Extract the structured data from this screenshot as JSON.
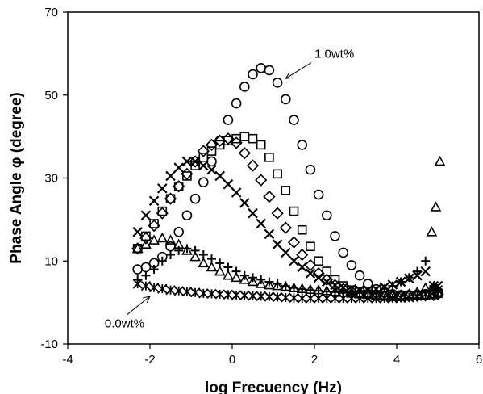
{
  "chart_data": {
    "type": "scatter",
    "title": "",
    "xlabel": "log Frecuency (Hz)",
    "ylabel": "Phase Angle φ (degree)",
    "xlim": [
      -4,
      6
    ],
    "ylim": [
      -10,
      70
    ],
    "xticks": [
      "-4",
      "-2",
      "0",
      "2",
      "4",
      "6"
    ],
    "yticks": [
      "-10",
      "10",
      "30",
      "50",
      "70"
    ],
    "grid": false,
    "legend": "none",
    "annotations": [
      {
        "text": "1.0wt%",
        "x": 2.0,
        "y": 59,
        "arrow_to": [
          1.3,
          54
        ]
      },
      {
        "text": "0.0wt%",
        "x": -3.1,
        "y": -6,
        "arrow_to": [
          -2.0,
          1.5
        ]
      }
    ],
    "series": [
      {
        "marker": "circle",
        "x": [
          -2.3,
          -2.1,
          -1.9,
          -1.7,
          -1.5,
          -1.3,
          -1.1,
          -0.9,
          -0.7,
          -0.5,
          -0.3,
          -0.1,
          0.1,
          0.3,
          0.5,
          0.7,
          0.9,
          1.1,
          1.3,
          1.5,
          1.7,
          1.9,
          2.1,
          2.3,
          2.5,
          2.7,
          2.9,
          3.1,
          3.3,
          3.5,
          3.7,
          3.9,
          4.1,
          4.3,
          4.5,
          4.7,
          4.9,
          5.0
        ],
        "y": [
          8,
          8.5,
          9.5,
          11,
          13.5,
          17,
          21,
          25,
          29,
          34,
          39,
          44,
          48,
          52,
          55,
          56.5,
          56,
          53,
          49,
          44,
          38,
          32,
          26,
          21,
          16,
          12,
          9,
          6.5,
          4.5,
          3.2,
          2.5,
          2,
          1.8,
          1.8,
          1.9,
          2,
          2.2,
          2.5
        ]
      },
      {
        "marker": "square",
        "x": [
          -2.3,
          -2.1,
          -1.9,
          -1.7,
          -1.5,
          -1.3,
          -1.1,
          -0.9,
          -0.7,
          -0.5,
          -0.3,
          -0.1,
          0.1,
          0.3,
          0.5,
          0.7,
          0.9,
          1.1,
          1.3,
          1.5,
          1.7,
          1.9,
          2.1,
          2.3,
          2.5,
          2.7,
          2.9,
          3.1,
          3.3,
          3.5,
          3.7,
          3.9,
          4.1,
          4.3,
          4.5,
          4.7,
          4.9,
          5.0
        ],
        "y": [
          13,
          16,
          19,
          22,
          25,
          28,
          30.5,
          33,
          35,
          36.5,
          38,
          39,
          39.5,
          40,
          39.5,
          38,
          35,
          31,
          27,
          22,
          17.5,
          13.5,
          10,
          7.5,
          5.5,
          4,
          3,
          2.5,
          2,
          1.8,
          1.6,
          1.5,
          1.5,
          1.6,
          1.7,
          1.8,
          2,
          2.2
        ]
      },
      {
        "marker": "diamond",
        "x": [
          -2.3,
          -2.1,
          -1.9,
          -1.7,
          -1.5,
          -1.3,
          -1.1,
          -0.9,
          -0.7,
          -0.5,
          -0.3,
          -0.1,
          0.1,
          0.3,
          0.5,
          0.7,
          0.9,
          1.1,
          1.3,
          1.5,
          1.7,
          1.9,
          2.1,
          2.3,
          2.5,
          2.7,
          2.9,
          3.1,
          3.3,
          3.5,
          3.7,
          3.9,
          4.1,
          4.3,
          4.5,
          4.7,
          4.9,
          5.0
        ],
        "y": [
          13,
          15.5,
          18.5,
          21.5,
          25,
          28,
          31,
          34,
          36.5,
          38,
          39,
          39.5,
          38.5,
          36,
          33,
          29.5,
          25.5,
          21.5,
          18,
          14.5,
          11.5,
          9,
          7,
          5.5,
          4.2,
          3.2,
          2.6,
          2.2,
          1.9,
          1.7,
          1.6,
          1.5,
          1.5,
          1.5,
          1.6,
          1.7,
          1.8,
          2
        ]
      },
      {
        "marker": "x",
        "x": [
          -2.3,
          -2.1,
          -1.9,
          -1.7,
          -1.5,
          -1.3,
          -1.1,
          -0.9,
          -0.7,
          -0.5,
          -0.3,
          -0.1,
          0.1,
          0.3,
          0.5,
          0.7,
          0.9,
          1.1,
          1.3,
          1.5,
          1.7,
          1.9,
          2.1,
          2.3,
          2.5,
          2.7,
          2.9,
          3.1,
          3.3,
          3.5,
          3.7,
          3.9,
          4.1,
          4.3,
          4.5,
          4.7,
          4.9,
          5.0
        ],
        "y": [
          17,
          21,
          24.5,
          27.5,
          30.5,
          32.5,
          34,
          34,
          33,
          32,
          30.5,
          28.5,
          26.5,
          24,
          21.5,
          19,
          16.5,
          14,
          12,
          10,
          8.5,
          7,
          6,
          5,
          4.2,
          3.6,
          3.2,
          3,
          3,
          3.2,
          3.7,
          4.3,
          5,
          5.8,
          6.5,
          7.5,
          4,
          4
        ]
      },
      {
        "marker": "triangle",
        "x": [
          -2.3,
          -2.1,
          -1.9,
          -1.7,
          -1.5,
          -1.3,
          -1.1,
          -0.9,
          -0.7,
          -0.5,
          -0.3,
          -0.1,
          0.1,
          0.3,
          0.5,
          0.7,
          0.9,
          1.1,
          1.3,
          1.5,
          1.7,
          1.9,
          2.1,
          2.3,
          2.5,
          2.7,
          2.9,
          3.1,
          3.3,
          3.5,
          3.7,
          3.9,
          4.1,
          4.3,
          4.5,
          4.7,
          4.85,
          4.95,
          5.05
        ],
        "y": [
          13,
          14,
          15,
          15.5,
          15,
          14,
          12.5,
          11,
          9.5,
          8.5,
          7.5,
          6.5,
          6,
          5.5,
          5,
          4.5,
          4.2,
          4,
          3.8,
          3.5,
          3.3,
          3.1,
          3,
          2.8,
          2.6,
          2.4,
          2.2,
          2,
          1.9,
          1.8,
          1.7,
          1.7,
          1.8,
          2,
          2.5,
          3.5,
          17,
          23,
          34
        ]
      },
      {
        "marker": "plus",
        "x": [
          -2.3,
          -2.1,
          -1.9,
          -1.7,
          -1.5,
          -1.3,
          -1.1,
          -0.9,
          -0.7,
          -0.5,
          -0.3,
          -0.1,
          0.1,
          0.3,
          0.5,
          0.7,
          0.9,
          1.1,
          1.3,
          1.5,
          1.7,
          1.9,
          2.1,
          2.3,
          2.5,
          2.7,
          2.9,
          3.1,
          3.3,
          3.5,
          3.7,
          3.9,
          4.1,
          4.3,
          4.5,
          4.7,
          4.9,
          5.0
        ],
        "y": [
          5.5,
          6.5,
          8,
          10,
          11.5,
          12.5,
          13,
          12.5,
          11.5,
          10.5,
          9.5,
          8.5,
          7.5,
          6.5,
          6,
          5.5,
          5,
          4.5,
          4,
          3.5,
          3.2,
          3,
          2.8,
          2.6,
          2.5,
          2.4,
          2.3,
          2.3,
          2.5,
          2.8,
          3.3,
          4,
          5,
          6,
          7.5,
          10,
          4,
          3
        ]
      },
      {
        "marker": "star",
        "x": [
          -2.3,
          -2.1,
          -1.9,
          -1.7,
          -1.5,
          -1.3,
          -1.1,
          -0.9,
          -0.7,
          -0.5,
          -0.3,
          -0.1,
          0.1,
          0.3,
          0.5,
          0.7,
          0.9,
          1.1,
          1.3,
          1.5,
          1.7,
          1.9,
          2.1,
          2.3,
          2.5,
          2.7,
          2.9,
          3.1,
          3.3,
          3.5,
          3.7,
          3.9,
          4.1,
          4.3,
          4.5,
          4.7,
          4.9,
          5.0
        ],
        "y": [
          4.5,
          4,
          3.6,
          3.3,
          3,
          2.8,
          2.6,
          2.4,
          2.2,
          2.1,
          2,
          1.9,
          1.8,
          1.7,
          1.6,
          1.5,
          1.4,
          1.3,
          1.2,
          1.1,
          1,
          1,
          1,
          1,
          1,
          1,
          1,
          1,
          1,
          1,
          1,
          1,
          1.1,
          1.2,
          1.5,
          2,
          2.5,
          3
        ]
      }
    ]
  }
}
